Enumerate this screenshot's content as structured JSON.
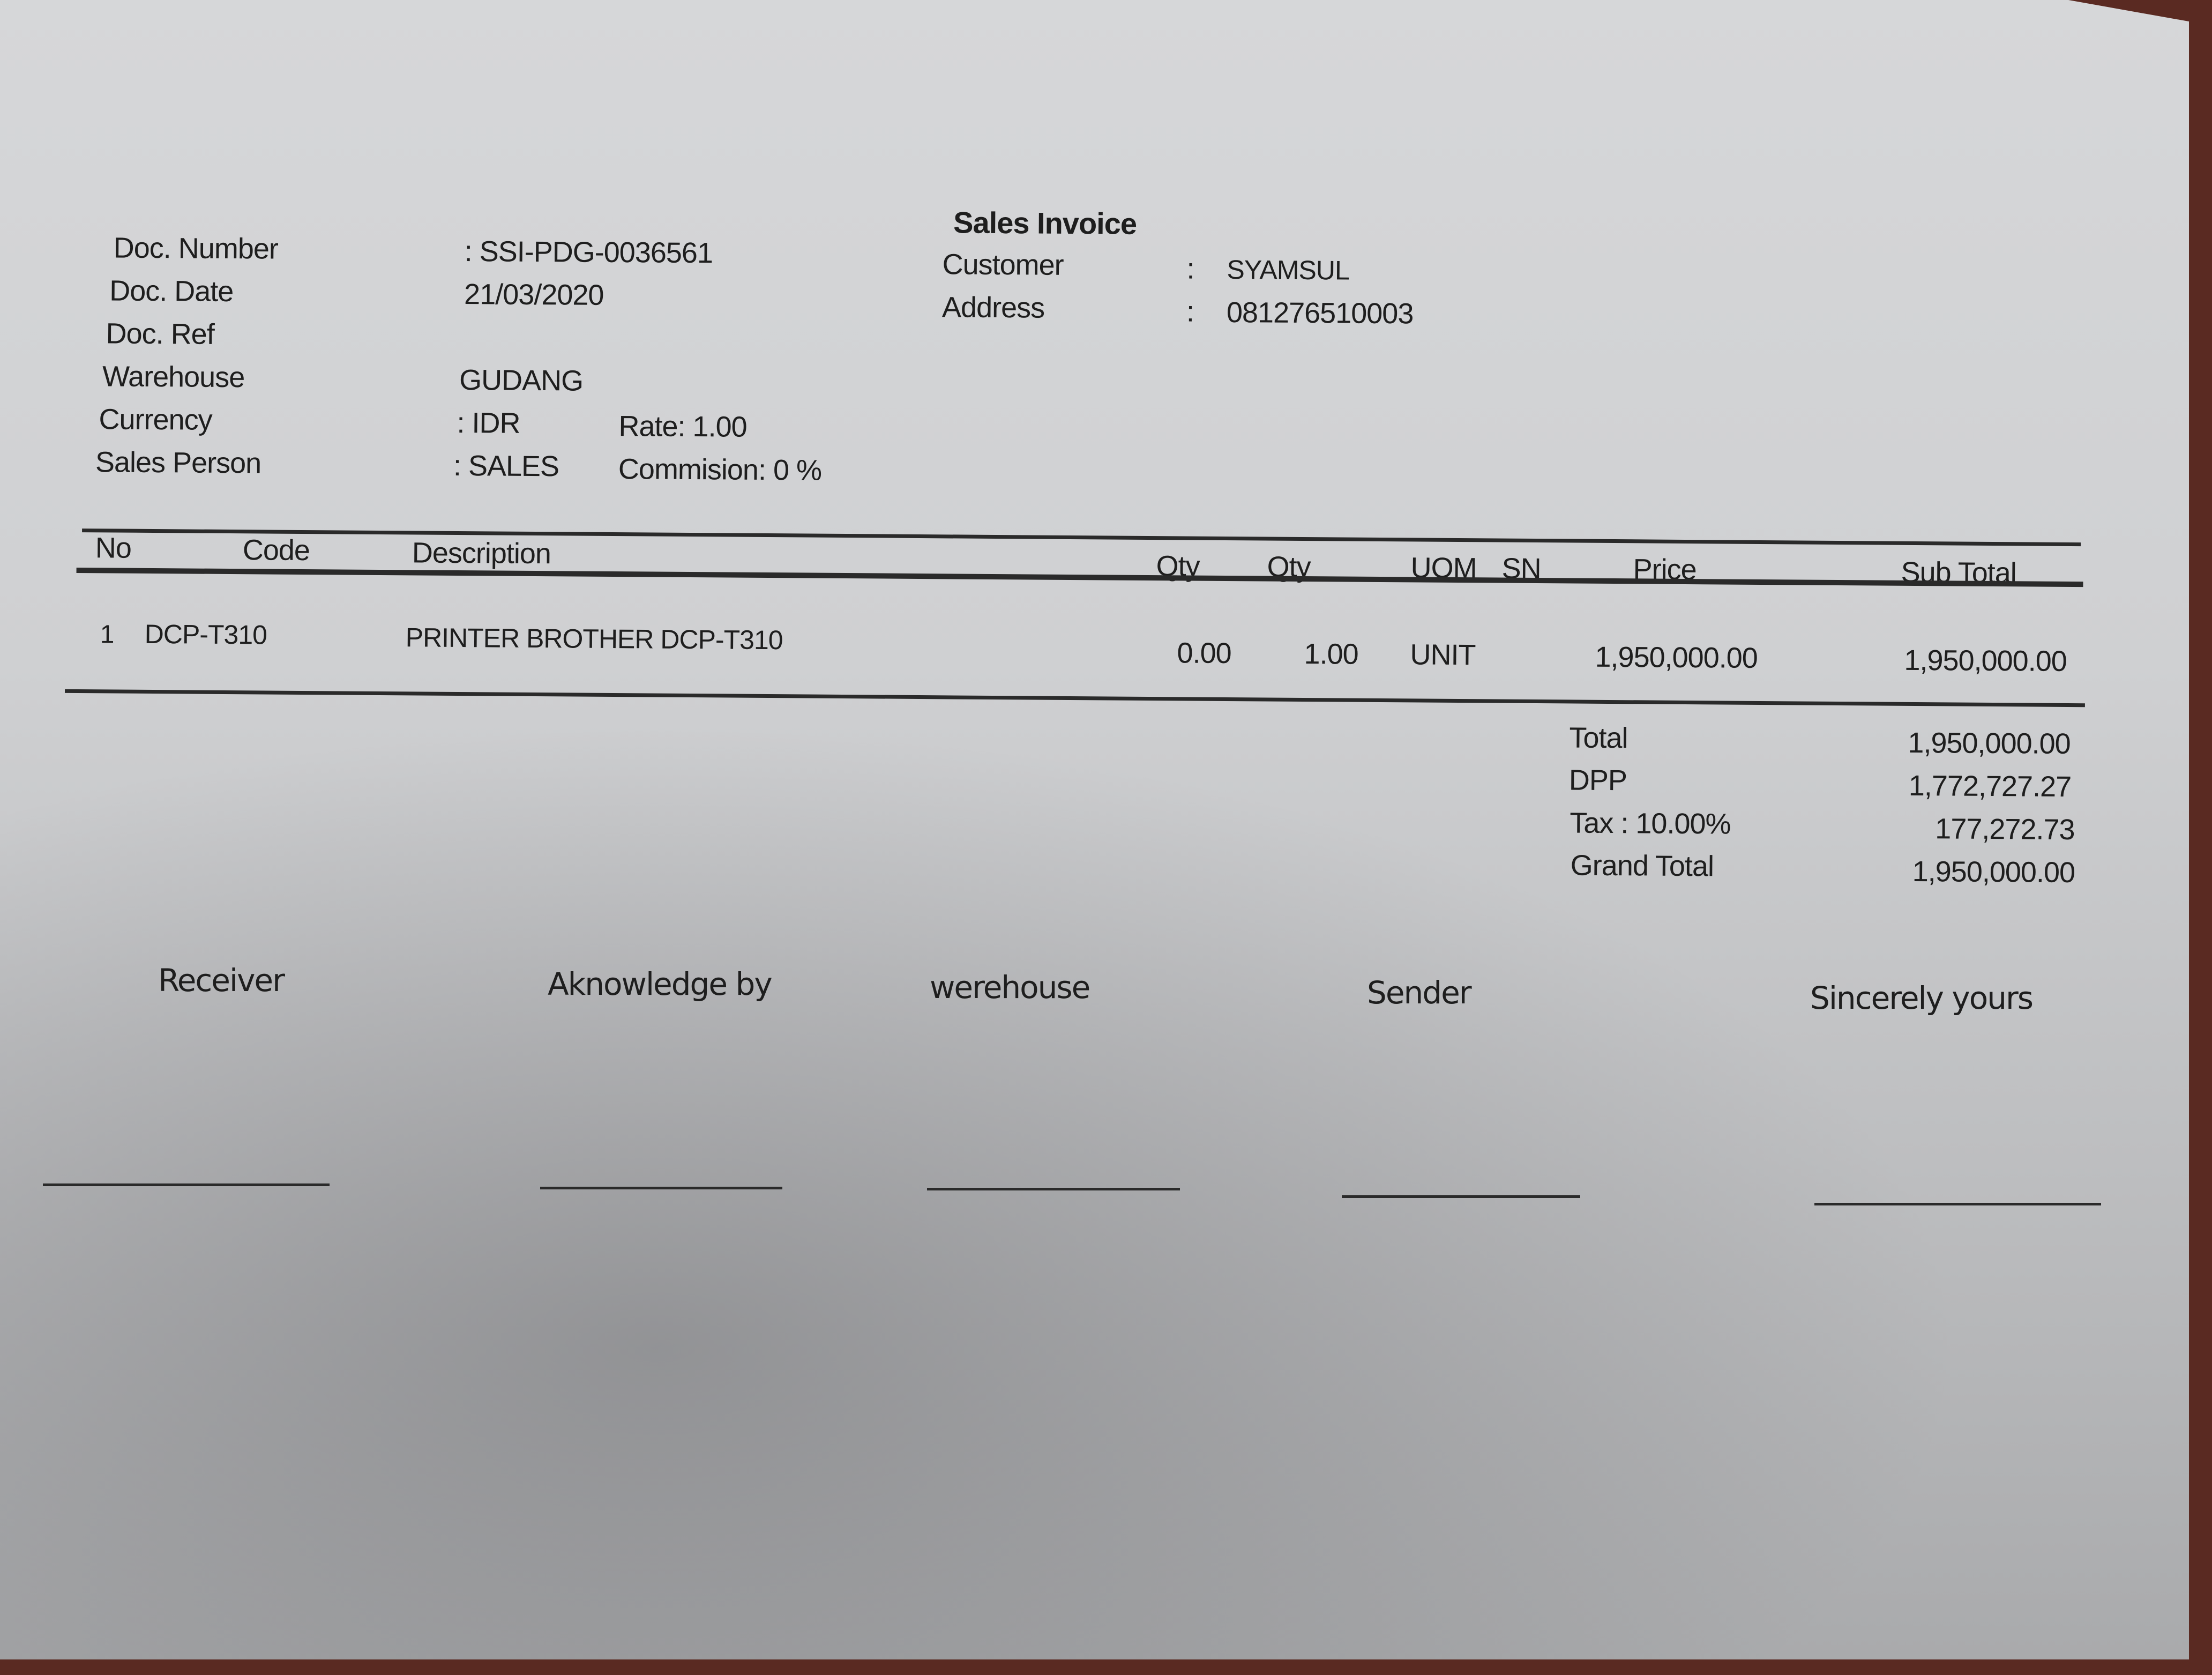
{
  "title": "Sales Invoice",
  "header_left": [
    {
      "label": "Doc. Number",
      "value": ": SSI-PDG-0036561"
    },
    {
      "label": "Doc. Date",
      "value": "21/03/2020"
    },
    {
      "label": "Doc. Ref",
      "value": ""
    },
    {
      "label": "Warehouse",
      "value": "GUDANG"
    },
    {
      "label": "Currency",
      "value": ": IDR",
      "extra": "Rate: 1.00"
    },
    {
      "label": "Sales Person",
      "value": ": SALES",
      "extra": "Commision: 0 %"
    }
  ],
  "header_right": [
    {
      "label": "Customer",
      "sep": ":",
      "value": "SYAMSUL"
    },
    {
      "label": "Address",
      "sep": ":",
      "value": "081276510003"
    }
  ],
  "table": {
    "columns": [
      "No",
      "Code",
      "Description",
      "Qty",
      "Qty",
      "UOM",
      "SN",
      "Price",
      "Sub Total"
    ],
    "rows": [
      {
        "no": "1",
        "code": "DCP-T310",
        "description": "PRINTER BROTHER DCP-T310",
        "qty1": "0.00",
        "qty2": "1.00",
        "uom": "UNIT",
        "sn": "",
        "price": "1,950,000.00",
        "subtotal": "1,950,000.00"
      }
    ]
  },
  "totals": [
    {
      "label": "Total",
      "value": "1,950,000.00"
    },
    {
      "label": "DPP",
      "value": "1,772,727.27"
    },
    {
      "label": "Tax : 10.00%",
      "value": "177,272.73"
    },
    {
      "label": "Grand Total",
      "value": "1,950,000.00"
    }
  ],
  "signatures": [
    "Receiver",
    "Aknowledge by",
    "werehouse",
    "Sender",
    "Sincerely yours"
  ],
  "colors": {
    "paper": "#cfd0d2",
    "ink": "#1e1e1e",
    "background": "#5a2a22"
  }
}
